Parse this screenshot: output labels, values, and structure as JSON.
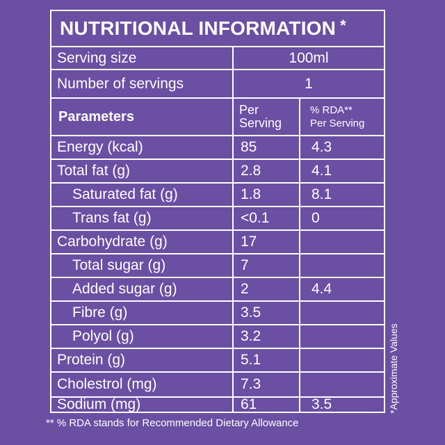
{
  "title": {
    "text": "NUTRITIONAL INFORMATION",
    "star": "*"
  },
  "serving": {
    "size_label": "Serving size",
    "size_value": "100ml",
    "count_label": "Number of servings",
    "count_value": "1"
  },
  "header": {
    "parameters": "Parameters",
    "per_line1": "Per",
    "per_line2": "Serving",
    "rda_line1": "% RDA**",
    "rda_line2": "Per Serving"
  },
  "rows": [
    {
      "name": "Energy (kcal)",
      "per": "85",
      "rda": "4.3"
    },
    {
      "name": "Total fat (g)",
      "per": "2.8",
      "rda": "4.1"
    },
    {
      "name": "Saturated fat (g)",
      "per": "1.8",
      "rda": "8.1"
    },
    {
      "name": "Trans fat (g)",
      "per": "<0.1",
      "rda": "0"
    },
    {
      "name": "Carbohydrate (g)",
      "per": "17",
      "rda": ""
    },
    {
      "name": "Total sugar (g)",
      "per": "7",
      "rda": ""
    },
    {
      "name": "Added sugar (g)",
      "per": "2",
      "rda": "4.4"
    },
    {
      "name": "Fibre (g)",
      "per": "3.5",
      "rda": ""
    },
    {
      "name": "Polyol (g)",
      "per": "3.2",
      "rda": ""
    },
    {
      "name": "Protein (g)",
      "per": "5.1",
      "rda": ""
    },
    {
      "name": "Cholestrol (mg)",
      "per": "7.3",
      "rda": ""
    },
    {
      "name": "Sodium (mg)",
      "per": "61",
      "rda": "3.5"
    }
  ],
  "side_note": "*Approximate Values",
  "footer": "** % RDA stands for Recommended Dietary Allowance",
  "colors": {
    "background": "#6a4fa3",
    "text": "#ffffff"
  }
}
